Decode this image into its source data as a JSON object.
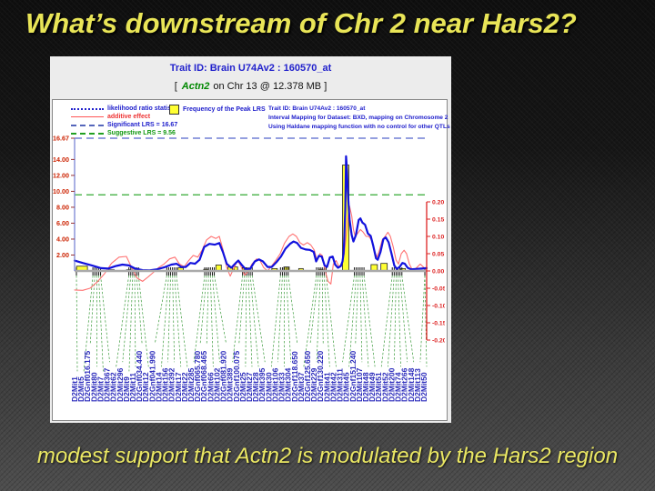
{
  "slide": {
    "title": "What’s downstream of Chr 2 near Hars2?",
    "caption": "modest support that Actn2 is modulated by the Hars2 region",
    "colors": {
      "title_yellow": "#e9e557",
      "caption_yellow": "#eae763",
      "background_top": "#0f0f0f",
      "background_bottom": "#4e4e4e"
    }
  },
  "chart_data": {
    "type": "line",
    "title": "Trait ID: Brain U74Av2 : 160570_at",
    "subtitle": {
      "open": "[",
      "gene": "Actn2",
      "rest": "on Chr 13 @ 12.378 MB ]"
    },
    "legend": {
      "items": [
        {
          "label": "likelihood ratio statistic",
          "color": "#2020cc",
          "line": "dotted-blue"
        },
        {
          "label": "additive effect",
          "color": "#ee3333",
          "line": "solid-red"
        },
        {
          "label": "Significant LRS = 16.67",
          "color": "#2020cc",
          "line": "dashed-slate"
        },
        {
          "label": "Suggestive LRS = 9.56",
          "color": "#119911",
          "line": "dashed-green"
        }
      ],
      "frequency": {
        "label": "Frequency of the Peak LRS",
        "swatch_color": "#ffff33"
      }
    },
    "info_lines": [
      "Trait ID: Brain U74Av2 : 160570_at",
      "Interval Mapping for Dataset: BXD, mapping on Chromosome 2",
      "Using Haldane mapping function with no control for other QTLs"
    ],
    "axes": {
      "y_left": {
        "name": "LRS",
        "tick_labels": [
          "16.67",
          "14.00",
          "12.00",
          "10.00",
          "8.00",
          "6.00",
          "4.00",
          "2.00"
        ],
        "tick_values": [
          16.67,
          14,
          12,
          10,
          8,
          6,
          4,
          2
        ],
        "max": 16.67,
        "color": "#cc2200",
        "axis_color": "#7b86d6"
      },
      "y_right": {
        "name": "Additive effect",
        "tick_labels": [
          "0.20",
          "0.15",
          "0.10",
          "0.05",
          "0.00",
          "-0.05",
          "-0.10",
          "-0.15",
          "-0.20"
        ],
        "tick_values": [
          0.2,
          0.15,
          0.1,
          0.05,
          0,
          -0.05,
          -0.1,
          -0.15,
          -0.2
        ],
        "color": "#dd2222"
      },
      "x": {
        "chromosome": "2"
      }
    },
    "thresholds": {
      "significant_lrs": 16.67,
      "suggestive_lrs": 9.56,
      "significant_color": "#5566cc",
      "suggestive_color": "#33aa33"
    },
    "series": [
      {
        "name": "likelihood ratio statistic",
        "axis": "left",
        "color": "#1111dd",
        "points": [
          [
            0.0,
            1.3
          ],
          [
            0.023,
            1.0
          ],
          [
            0.049,
            0.7
          ],
          [
            0.075,
            0.35
          ],
          [
            0.095,
            0.3
          ],
          [
            0.116,
            0.6
          ],
          [
            0.136,
            0.8
          ],
          [
            0.154,
            0.7
          ],
          [
            0.172,
            0.3
          ],
          [
            0.193,
            0.1
          ],
          [
            0.213,
            0.08
          ],
          [
            0.234,
            0.2
          ],
          [
            0.254,
            0.45
          ],
          [
            0.275,
            0.8
          ],
          [
            0.29,
            0.9
          ],
          [
            0.303,
            0.5
          ],
          [
            0.316,
            0.5
          ],
          [
            0.329,
            1.0
          ],
          [
            0.342,
            0.9
          ],
          [
            0.355,
            1.4
          ],
          [
            0.368,
            3.0
          ],
          [
            0.383,
            3.4
          ],
          [
            0.398,
            3.3
          ],
          [
            0.411,
            3.5
          ],
          [
            0.422,
            2.3
          ],
          [
            0.432,
            0.9
          ],
          [
            0.445,
            0.4
          ],
          [
            0.458,
            1.0
          ],
          [
            0.465,
            1.3
          ],
          [
            0.476,
            0.7
          ],
          [
            0.486,
            0.2
          ],
          [
            0.499,
            0.3
          ],
          [
            0.512,
            1.2
          ],
          [
            0.524,
            1.45
          ],
          [
            0.535,
            1.2
          ],
          [
            0.548,
            0.5
          ],
          [
            0.56,
            0.5
          ],
          [
            0.573,
            1.1
          ],
          [
            0.586,
            1.8
          ],
          [
            0.599,
            2.8
          ],
          [
            0.612,
            3.4
          ],
          [
            0.622,
            3.7
          ],
          [
            0.632,
            3.5
          ],
          [
            0.643,
            2.9
          ],
          [
            0.656,
            2.7
          ],
          [
            0.668,
            2.65
          ],
          [
            0.679,
            2.4
          ],
          [
            0.686,
            1.2
          ],
          [
            0.694,
            1.9
          ],
          [
            0.702,
            1.8
          ],
          [
            0.71,
            0.7
          ],
          [
            0.717,
            0.5
          ],
          [
            0.725,
            1.7
          ],
          [
            0.733,
            1.8
          ],
          [
            0.74,
            0.8
          ],
          [
            0.748,
            0.4
          ],
          [
            0.756,
            0.6
          ],
          [
            0.761,
            1.2
          ],
          [
            0.764,
            2.2
          ],
          [
            0.766,
            4.0
          ],
          [
            0.769,
            8.0
          ],
          [
            0.771,
            14.4
          ],
          [
            0.774,
            12.5
          ],
          [
            0.776,
            10.0
          ],
          [
            0.781,
            6.5
          ],
          [
            0.787,
            4.5
          ],
          [
            0.792,
            3.7
          ],
          [
            0.799,
            4.5
          ],
          [
            0.807,
            6.4
          ],
          [
            0.812,
            6.6
          ],
          [
            0.817,
            6.1
          ],
          [
            0.825,
            5.8
          ],
          [
            0.833,
            4.7
          ],
          [
            0.841,
            4.4
          ],
          [
            0.848,
            3.2
          ],
          [
            0.856,
            1.6
          ],
          [
            0.861,
            1.4
          ],
          [
            0.869,
            2.4
          ],
          [
            0.877,
            4.0
          ],
          [
            0.884,
            4.2
          ],
          [
            0.892,
            3.6
          ],
          [
            0.9,
            2.2
          ],
          [
            0.908,
            0.7
          ],
          [
            0.915,
            0.25
          ],
          [
            0.923,
            0.5
          ],
          [
            0.931,
            1.0
          ],
          [
            0.938,
            0.9
          ],
          [
            0.946,
            0.4
          ],
          [
            0.956,
            0.2
          ],
          [
            0.969,
            0.25
          ],
          [
            0.985,
            0.3
          ],
          [
            1.0,
            0.35
          ]
        ]
      },
      {
        "name": "additive effect",
        "axis": "right",
        "color": "#ff7272",
        "points": [
          [
            0.0,
            -0.055
          ],
          [
            0.023,
            -0.056
          ],
          [
            0.044,
            -0.05
          ],
          [
            0.064,
            -0.032
          ],
          [
            0.085,
            -0.008
          ],
          [
            0.105,
            0.022
          ],
          [
            0.126,
            0.04
          ],
          [
            0.147,
            0.042
          ],
          [
            0.162,
            0.01
          ],
          [
            0.177,
            -0.02
          ],
          [
            0.193,
            -0.03
          ],
          [
            0.208,
            -0.018
          ],
          [
            0.224,
            -0.004
          ],
          [
            0.239,
            0.01
          ],
          [
            0.254,
            0.02
          ],
          [
            0.27,
            0.035
          ],
          [
            0.285,
            0.04
          ],
          [
            0.298,
            0.02
          ],
          [
            0.311,
            0.012
          ],
          [
            0.324,
            0.03
          ],
          [
            0.337,
            0.045
          ],
          [
            0.35,
            0.04
          ],
          [
            0.362,
            0.06
          ],
          [
            0.375,
            0.09
          ],
          [
            0.388,
            0.1
          ],
          [
            0.401,
            0.094
          ],
          [
            0.411,
            0.1
          ],
          [
            0.422,
            0.06
          ],
          [
            0.432,
            0.01
          ],
          [
            0.442,
            -0.015
          ],
          [
            0.452,
            0.008
          ],
          [
            0.463,
            0.03
          ],
          [
            0.473,
            0.012
          ],
          [
            0.483,
            -0.012
          ],
          [
            0.494,
            0.0
          ],
          [
            0.504,
            0.02
          ],
          [
            0.517,
            0.035
          ],
          [
            0.527,
            0.03
          ],
          [
            0.537,
            0.01
          ],
          [
            0.548,
            0.0
          ],
          [
            0.558,
            0.012
          ],
          [
            0.571,
            0.03
          ],
          [
            0.584,
            0.05
          ],
          [
            0.596,
            0.08
          ],
          [
            0.609,
            0.1
          ],
          [
            0.62,
            0.107
          ],
          [
            0.63,
            0.1
          ],
          [
            0.64,
            0.082
          ],
          [
            0.65,
            0.075
          ],
          [
            0.661,
            0.082
          ],
          [
            0.671,
            0.075
          ],
          [
            0.681,
            0.06
          ],
          [
            0.689,
            0.03
          ],
          [
            0.697,
            0.05
          ],
          [
            0.704,
            0.044
          ],
          [
            0.712,
            0.0
          ],
          [
            0.72,
            -0.03
          ],
          [
            0.728,
            -0.038
          ],
          [
            0.735,
            0.02
          ],
          [
            0.743,
            0.03
          ],
          [
            0.751,
            0.012
          ],
          [
            0.758,
            0.02
          ],
          [
            0.766,
            0.05
          ],
          [
            0.771,
            0.1
          ],
          [
            0.776,
            0.15
          ],
          [
            0.781,
            0.188
          ],
          [
            0.787,
            0.16
          ],
          [
            0.792,
            0.12
          ],
          [
            0.797,
            0.1
          ],
          [
            0.805,
            0.11
          ],
          [
            0.812,
            0.12
          ],
          [
            0.82,
            0.112
          ],
          [
            0.828,
            0.1
          ],
          [
            0.836,
            0.1
          ],
          [
            0.843,
            0.09
          ],
          [
            0.851,
            0.06
          ],
          [
            0.859,
            0.04
          ],
          [
            0.866,
            0.06
          ],
          [
            0.874,
            0.09
          ],
          [
            0.882,
            0.1
          ],
          [
            0.89,
            0.112
          ],
          [
            0.897,
            0.1
          ],
          [
            0.905,
            0.07
          ],
          [
            0.913,
            0.032
          ],
          [
            0.92,
            0.02
          ],
          [
            0.928,
            0.05
          ],
          [
            0.936,
            0.06
          ],
          [
            0.943,
            0.05
          ],
          [
            0.951,
            0.02
          ],
          [
            0.961,
            0.0
          ],
          [
            0.972,
            0.01
          ],
          [
            0.982,
            0.02
          ],
          [
            0.992,
            0.01
          ],
          [
            1.0,
            0.0
          ]
        ]
      }
    ],
    "peak_frequency_bars": [
      [
        0.021,
        12,
        0.6
      ],
      [
        0.105,
        6,
        0.15
      ],
      [
        0.154,
        5,
        0.15
      ],
      [
        0.301,
        6,
        0.4
      ],
      [
        0.373,
        5,
        0.2
      ],
      [
        0.409,
        6,
        0.75
      ],
      [
        0.442,
        5,
        0.5
      ],
      [
        0.458,
        4,
        0.5
      ],
      [
        0.483,
        5,
        0.4
      ],
      [
        0.568,
        6,
        0.3
      ],
      [
        0.602,
        6,
        0.5
      ],
      [
        0.643,
        5,
        0.3
      ],
      [
        0.699,
        5,
        0.2
      ],
      [
        0.77,
        7,
        13.3
      ],
      [
        0.851,
        7,
        0.8
      ],
      [
        0.879,
        7,
        0.95
      ],
      [
        0.933,
        5,
        0.3
      ]
    ],
    "markers": [
      "D2Mit1",
      "D2Mit5",
      "D2Gnf016.175",
      "D2Mit80",
      "D2Mit7",
      "D2Mit367",
      "D2Mit62",
      "D2Mit296",
      "D2Mit9",
      "D2Mit11",
      "D2Gnf034.440",
      "D2Mit12",
      "D2Gnf041.990",
      "D2Mit14",
      "D2Mit156",
      "D2Mit392",
      "D2Mit17",
      "D2Mit22",
      "D2Mit285",
      "D2Gnf065.780",
      "D2Gnf068.465",
      "D2Mit66",
      "D2Mit102",
      "D2Gnf081.920",
      "D2Mit389",
      "D2Gnf100.075",
      "D2Mit25",
      "D2Mit27",
      "D2Mit28",
      "D2Mit395",
      "D2Mit30",
      "D2Mit106",
      "D2Mit33",
      "D2Mit304",
      "D2Gnf118.650",
      "D2Mit37",
      "D2Gnf125.650",
      "D2Mit229",
      "D2Gnf130.220",
      "D2Mit41",
      "D2Mit42",
      "D2Mit311",
      "D2Mit45",
      "D2Gnf151.240",
      "D2Mit107",
      "D2Mit48",
      "D2Mit49",
      "D2Mit51",
      "D2Mit52",
      "D2Mit200",
      "D2Mit74",
      "D2Mit266",
      "D2Mit148",
      "D2Mit113",
      "D2Mit50"
    ],
    "marker_label_color": "#2b2bbb",
    "connector_color": "#3a9a3a",
    "bar_fill": "#ffff33"
  }
}
